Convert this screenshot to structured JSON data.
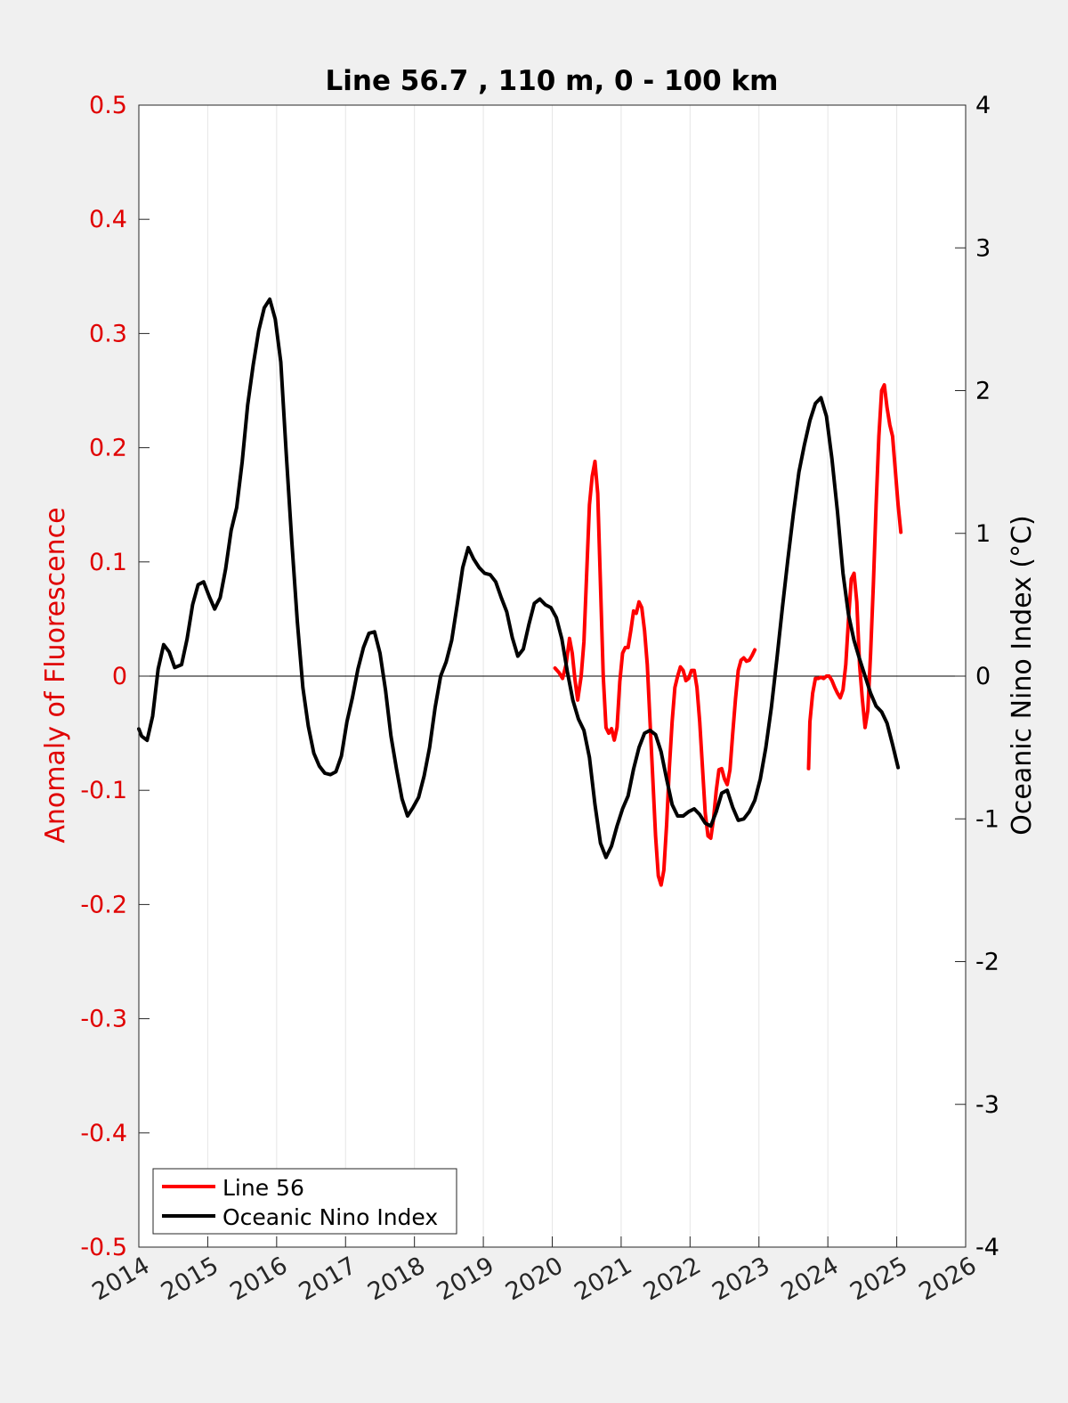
{
  "chart_data": {
    "type": "line",
    "title": "Line 56.7 , 110 m, 0 - 100 km",
    "xlabel": "",
    "ylabel_left": "Anomaly of Fluorescence",
    "ylabel_right": "Oceanic Nino Index (°C)",
    "xlim": [
      2014,
      2026
    ],
    "ylim_left": [
      -0.5,
      0.5
    ],
    "ylim_right": [
      -4,
      4
    ],
    "x_ticks": [
      "2014",
      "2015",
      "2016",
      "2017",
      "2018",
      "2019",
      "2020",
      "2021",
      "2022",
      "2023",
      "2024",
      "2025",
      "2026"
    ],
    "y_left_ticks": [
      "-0.5",
      "-0.4",
      "-0.3",
      "-0.2",
      "-0.1",
      "0",
      "0.1",
      "0.2",
      "0.3",
      "0.4",
      "0.5"
    ],
    "y_right_ticks": [
      "-4",
      "-3",
      "-2",
      "-1",
      "0",
      "1",
      "2",
      "3",
      "4"
    ],
    "grid": "vertical lines at each year",
    "legend_position": "bottom-left",
    "colors": {
      "line56": "#ff0000",
      "oni": "#000000",
      "left_axis": "#e00000",
      "right_axis": "#000000"
    },
    "series": [
      {
        "name": "Line 56",
        "axis": "left",
        "segments": [
          [
            [
              2020.04,
              0.007
            ],
            [
              2020.1,
              0.003
            ],
            [
              2020.15,
              -0.002
            ],
            [
              2020.2,
              0.01
            ],
            [
              2020.25,
              0.033
            ],
            [
              2020.29,
              0.02
            ],
            [
              2020.33,
              -0.003
            ],
            [
              2020.37,
              -0.021
            ],
            [
              2020.42,
              0.0
            ],
            [
              2020.46,
              0.03
            ],
            [
              2020.5,
              0.09
            ],
            [
              2020.54,
              0.15
            ],
            [
              2020.58,
              0.175
            ],
            [
              2020.62,
              0.188
            ],
            [
              2020.66,
              0.16
            ],
            [
              2020.7,
              0.08
            ],
            [
              2020.74,
              0.0
            ],
            [
              2020.78,
              -0.045
            ],
            [
              2020.82,
              -0.05
            ],
            [
              2020.86,
              -0.046
            ],
            [
              2020.9,
              -0.056
            ],
            [
              2020.94,
              -0.045
            ],
            [
              2020.98,
              -0.005
            ],
            [
              2021.02,
              0.02
            ],
            [
              2021.06,
              0.025
            ],
            [
              2021.1,
              0.025
            ],
            [
              2021.14,
              0.04
            ],
            [
              2021.18,
              0.057
            ],
            [
              2021.22,
              0.055
            ],
            [
              2021.26,
              0.065
            ],
            [
              2021.3,
              0.06
            ],
            [
              2021.34,
              0.04
            ],
            [
              2021.38,
              0.01
            ],
            [
              2021.42,
              -0.04
            ],
            [
              2021.46,
              -0.09
            ],
            [
              2021.5,
              -0.14
            ],
            [
              2021.54,
              -0.175
            ],
            [
              2021.58,
              -0.183
            ],
            [
              2021.62,
              -0.17
            ],
            [
              2021.66,
              -0.13
            ],
            [
              2021.7,
              -0.08
            ],
            [
              2021.74,
              -0.04
            ],
            [
              2021.78,
              -0.01
            ],
            [
              2021.82,
              0.0
            ],
            [
              2021.86,
              0.008
            ],
            [
              2021.9,
              0.005
            ],
            [
              2021.94,
              -0.004
            ],
            [
              2021.98,
              -0.002
            ],
            [
              2022.02,
              0.005
            ],
            [
              2022.06,
              0.005
            ],
            [
              2022.1,
              -0.01
            ],
            [
              2022.14,
              -0.04
            ],
            [
              2022.18,
              -0.08
            ],
            [
              2022.22,
              -0.12
            ],
            [
              2022.26,
              -0.14
            ],
            [
              2022.3,
              -0.142
            ],
            [
              2022.34,
              -0.125
            ],
            [
              2022.38,
              -0.1
            ],
            [
              2022.42,
              -0.082
            ],
            [
              2022.46,
              -0.081
            ],
            [
              2022.5,
              -0.09
            ],
            [
              2022.54,
              -0.095
            ],
            [
              2022.58,
              -0.082
            ],
            [
              2022.62,
              -0.05
            ],
            [
              2022.66,
              -0.02
            ],
            [
              2022.7,
              0.005
            ],
            [
              2022.74,
              0.014
            ],
            [
              2022.78,
              0.016
            ],
            [
              2022.82,
              0.013
            ],
            [
              2022.86,
              0.014
            ],
            [
              2022.9,
              0.018
            ],
            [
              2022.94,
              0.023
            ]
          ],
          [
            [
              2023.72,
              -0.081
            ],
            [
              2023.74,
              -0.04
            ],
            [
              2023.78,
              -0.015
            ],
            [
              2023.82,
              -0.002
            ],
            [
              2023.86,
              -0.002
            ],
            [
              2023.9,
              -0.001
            ],
            [
              2023.94,
              -0.002
            ],
            [
              2023.98,
              0.0
            ],
            [
              2024.02,
              0.0
            ],
            [
              2024.06,
              -0.004
            ],
            [
              2024.1,
              -0.01
            ],
            [
              2024.14,
              -0.015
            ],
            [
              2024.18,
              -0.019
            ],
            [
              2024.22,
              -0.012
            ],
            [
              2024.26,
              0.01
            ],
            [
              2024.3,
              0.05
            ],
            [
              2024.34,
              0.085
            ],
            [
              2024.38,
              0.09
            ],
            [
              2024.42,
              0.065
            ],
            [
              2024.46,
              0.01
            ],
            [
              2024.5,
              -0.02
            ],
            [
              2024.54,
              -0.045
            ],
            [
              2024.58,
              -0.03
            ],
            [
              2024.62,
              0.02
            ],
            [
              2024.66,
              0.08
            ],
            [
              2024.7,
              0.15
            ],
            [
              2024.74,
              0.21
            ],
            [
              2024.78,
              0.25
            ],
            [
              2024.82,
              0.255
            ],
            [
              2024.86,
              0.235
            ],
            [
              2024.9,
              0.22
            ],
            [
              2024.94,
              0.21
            ],
            [
              2024.98,
              0.18
            ],
            [
              2025.02,
              0.15
            ],
            [
              2025.06,
              0.126
            ]
          ]
        ]
      },
      {
        "name": "Oceanic Nino Index",
        "axis": "right",
        "segments": [
          [
            [
              2014.0,
              -0.37
            ],
            [
              2014.04,
              -0.42
            ],
            [
              2014.12,
              -0.45
            ],
            [
              2014.2,
              -0.28
            ],
            [
              2014.28,
              0.05
            ],
            [
              2014.36,
              0.22
            ],
            [
              2014.44,
              0.17
            ],
            [
              2014.52,
              0.06
            ],
            [
              2014.62,
              0.08
            ],
            [
              2014.7,
              0.26
            ],
            [
              2014.78,
              0.5
            ],
            [
              2014.86,
              0.64
            ],
            [
              2014.94,
              0.66
            ],
            [
              2015.02,
              0.56
            ],
            [
              2015.1,
              0.47
            ],
            [
              2015.18,
              0.55
            ],
            [
              2015.26,
              0.75
            ],
            [
              2015.34,
              1.02
            ],
            [
              2015.42,
              1.18
            ],
            [
              2015.5,
              1.5
            ],
            [
              2015.58,
              1.9
            ],
            [
              2015.66,
              2.18
            ],
            [
              2015.74,
              2.42
            ],
            [
              2015.82,
              2.58
            ],
            [
              2015.9,
              2.64
            ],
            [
              2015.98,
              2.5
            ],
            [
              2016.06,
              2.2
            ],
            [
              2016.14,
              1.55
            ],
            [
              2016.22,
              0.94
            ],
            [
              2016.3,
              0.38
            ],
            [
              2016.38,
              -0.08
            ],
            [
              2016.46,
              -0.35
            ],
            [
              2016.54,
              -0.54
            ],
            [
              2016.62,
              -0.63
            ],
            [
              2016.7,
              -0.68
            ],
            [
              2016.78,
              -0.69
            ],
            [
              2016.86,
              -0.67
            ],
            [
              2016.94,
              -0.56
            ],
            [
              2017.02,
              -0.32
            ],
            [
              2017.1,
              -0.15
            ],
            [
              2017.18,
              0.05
            ],
            [
              2017.26,
              0.2
            ],
            [
              2017.34,
              0.3
            ],
            [
              2017.42,
              0.31
            ],
            [
              2017.5,
              0.16
            ],
            [
              2017.58,
              -0.1
            ],
            [
              2017.66,
              -0.42
            ],
            [
              2017.74,
              -0.65
            ],
            [
              2017.82,
              -0.86
            ],
            [
              2017.9,
              -0.98
            ],
            [
              2017.98,
              -0.92
            ],
            [
              2018.06,
              -0.85
            ],
            [
              2018.14,
              -0.7
            ],
            [
              2018.22,
              -0.5
            ],
            [
              2018.3,
              -0.22
            ],
            [
              2018.38,
              0.0
            ],
            [
              2018.46,
              0.1
            ],
            [
              2018.54,
              0.25
            ],
            [
              2018.62,
              0.5
            ],
            [
              2018.7,
              0.76
            ],
            [
              2018.78,
              0.9
            ],
            [
              2018.86,
              0.82
            ],
            [
              2018.94,
              0.76
            ],
            [
              2019.02,
              0.72
            ],
            [
              2019.1,
              0.71
            ],
            [
              2019.18,
              0.66
            ],
            [
              2019.26,
              0.55
            ],
            [
              2019.34,
              0.45
            ],
            [
              2019.42,
              0.27
            ],
            [
              2019.5,
              0.14
            ],
            [
              2019.58,
              0.19
            ],
            [
              2019.66,
              0.36
            ],
            [
              2019.74,
              0.51
            ],
            [
              2019.82,
              0.54
            ],
            [
              2019.9,
              0.5
            ],
            [
              2019.98,
              0.48
            ],
            [
              2020.06,
              0.41
            ],
            [
              2020.14,
              0.26
            ],
            [
              2020.22,
              0.03
            ],
            [
              2020.3,
              -0.17
            ],
            [
              2020.38,
              -0.3
            ],
            [
              2020.46,
              -0.38
            ],
            [
              2020.54,
              -0.57
            ],
            [
              2020.62,
              -0.9
            ],
            [
              2020.7,
              -1.17
            ],
            [
              2020.78,
              -1.27
            ],
            [
              2020.86,
              -1.19
            ],
            [
              2020.94,
              -1.05
            ],
            [
              2021.02,
              -0.93
            ],
            [
              2021.1,
              -0.84
            ],
            [
              2021.18,
              -0.65
            ],
            [
              2021.26,
              -0.5
            ],
            [
              2021.34,
              -0.4
            ],
            [
              2021.42,
              -0.38
            ],
            [
              2021.5,
              -0.41
            ],
            [
              2021.58,
              -0.53
            ],
            [
              2021.66,
              -0.72
            ],
            [
              2021.74,
              -0.9
            ],
            [
              2021.82,
              -0.98
            ],
            [
              2021.9,
              -0.98
            ],
            [
              2021.98,
              -0.95
            ],
            [
              2022.06,
              -0.93
            ],
            [
              2022.14,
              -0.97
            ],
            [
              2022.22,
              -1.03
            ],
            [
              2022.3,
              -1.05
            ],
            [
              2022.38,
              -0.95
            ],
            [
              2022.46,
              -0.82
            ],
            [
              2022.54,
              -0.8
            ],
            [
              2022.62,
              -0.92
            ],
            [
              2022.7,
              -1.01
            ],
            [
              2022.78,
              -1.0
            ],
            [
              2022.86,
              -0.95
            ],
            [
              2022.94,
              -0.87
            ],
            [
              2023.02,
              -0.72
            ],
            [
              2023.1,
              -0.5
            ],
            [
              2023.18,
              -0.22
            ],
            [
              2023.26,
              0.12
            ],
            [
              2023.34,
              0.48
            ],
            [
              2023.42,
              0.82
            ],
            [
              2023.5,
              1.14
            ],
            [
              2023.58,
              1.43
            ],
            [
              2023.66,
              1.62
            ],
            [
              2023.74,
              1.79
            ],
            [
              2023.82,
              1.91
            ],
            [
              2023.9,
              1.95
            ],
            [
              2023.98,
              1.82
            ],
            [
              2024.06,
              1.52
            ],
            [
              2024.14,
              1.15
            ],
            [
              2024.22,
              0.72
            ],
            [
              2024.3,
              0.43
            ],
            [
              2024.38,
              0.25
            ],
            [
              2024.46,
              0.12
            ],
            [
              2024.54,
              0.0
            ],
            [
              2024.62,
              -0.12
            ],
            [
              2024.7,
              -0.21
            ],
            [
              2024.78,
              -0.25
            ],
            [
              2024.86,
              -0.33
            ],
            [
              2024.94,
              -0.48
            ],
            [
              2025.02,
              -0.64
            ]
          ]
        ]
      }
    ]
  }
}
